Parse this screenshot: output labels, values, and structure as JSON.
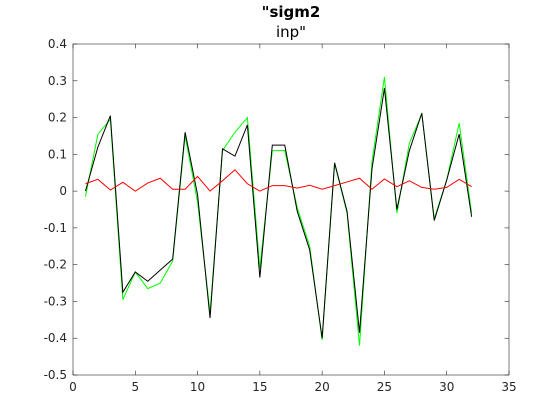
{
  "chart_data": {
    "type": "line",
    "title": "\"sigm2",
    "subtitle": "inp\"",
    "xlabel": "",
    "ylabel": "",
    "xlim": [
      0,
      35
    ],
    "ylim": [
      -0.5,
      0.4
    ],
    "xticks": [
      0,
      5,
      10,
      15,
      20,
      25,
      30,
      35
    ],
    "yticks": [
      -0.5,
      -0.4,
      -0.3,
      -0.2,
      -0.1,
      0,
      0.1,
      0.2,
      0.3,
      0.4
    ],
    "xtick_labels": [
      "0",
      "5",
      "10",
      "15",
      "20",
      "25",
      "30",
      "35"
    ],
    "ytick_labels": [
      "-0.5",
      "-0.4",
      "-0.3",
      "-0.2",
      "-0.1",
      "0",
      "0.1",
      "0.2",
      "0.3",
      "0.4"
    ],
    "grid": false,
    "legend": "none",
    "x": [
      1,
      2,
      3,
      4,
      5,
      6,
      7,
      8,
      9,
      10,
      11,
      12,
      13,
      14,
      15,
      16,
      17,
      18,
      19,
      20,
      21,
      22,
      23,
      24,
      25,
      26,
      27,
      28,
      29,
      30,
      31,
      32
    ],
    "series": [
      {
        "color": "#00ff00",
        "values": [
          -0.015,
          0.155,
          0.195,
          -0.295,
          -0.22,
          -0.265,
          -0.25,
          -0.19,
          0.15,
          -0.03,
          -0.33,
          0.11,
          0.16,
          0.2,
          -0.21,
          0.11,
          0.11,
          -0.045,
          -0.15,
          -0.405,
          0.075,
          -0.06,
          -0.42,
          0.08,
          0.31,
          -0.06,
          0.13,
          0.21,
          -0.075,
          0.03,
          0.185,
          -0.06
        ]
      },
      {
        "color": "#000000",
        "values": [
          0.0,
          0.12,
          0.205,
          -0.275,
          -0.22,
          -0.245,
          -0.215,
          -0.185,
          0.16,
          -0.01,
          -0.345,
          0.115,
          0.095,
          0.18,
          -0.235,
          0.125,
          0.125,
          -0.055,
          -0.16,
          -0.4,
          0.077,
          -0.055,
          -0.385,
          0.06,
          0.28,
          -0.05,
          0.11,
          0.212,
          -0.08,
          0.03,
          0.155,
          -0.07
        ]
      },
      {
        "color": "#ff0000",
        "values": [
          0.02,
          0.032,
          0.003,
          0.024,
          0.0,
          0.022,
          0.035,
          0.005,
          0.005,
          0.04,
          0.0,
          0.028,
          0.058,
          0.02,
          0.0,
          0.015,
          0.015,
          0.008,
          0.016,
          0.005,
          0.015,
          0.025,
          0.035,
          0.005,
          0.033,
          0.012,
          0.028,
          0.01,
          0.005,
          0.01,
          0.032,
          0.012
        ]
      }
    ],
    "colors": {
      "axis": "#262626",
      "background": "#ffffff"
    }
  }
}
